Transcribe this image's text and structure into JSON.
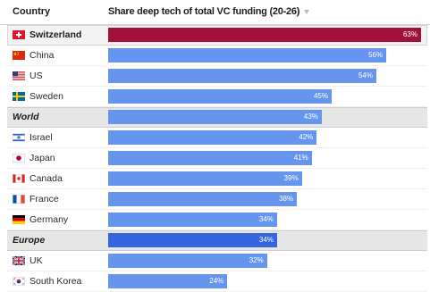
{
  "header": {
    "country_label": "Country",
    "sort_icon": "sort-descending-icon"
  },
  "colors": {
    "highlight_row_bg": "#f3f3f3",
    "aggregate_row_bg": "#e6e6e6"
  },
  "chart_data": {
    "type": "bar",
    "orientation": "horizontal",
    "title": "Share deep tech of total VC funding (20-26)",
    "categories": [
      "Switzerland",
      "China",
      "US",
      "Sweden",
      "World",
      "Israel",
      "Japan",
      "Canada",
      "France",
      "Germany",
      "Europe",
      "UK",
      "South Korea"
    ],
    "values": [
      63,
      56,
      54,
      45,
      43,
      42,
      41,
      39,
      38,
      34,
      34,
      32,
      24
    ],
    "value_labels": [
      "63%",
      "56%",
      "54%",
      "45%",
      "43%",
      "42%",
      "41%",
      "39%",
      "38%",
      "34%",
      "34%",
      "32%",
      "24%"
    ],
    "xlim": [
      0,
      63
    ],
    "highlighted": [
      true,
      false,
      false,
      false,
      false,
      false,
      false,
      false,
      false,
      false,
      false,
      false,
      false
    ],
    "is_aggregate": [
      false,
      false,
      false,
      false,
      true,
      false,
      false,
      false,
      false,
      false,
      true,
      false,
      false
    ],
    "flags": [
      "switzerland-flag-icon",
      "china-flag-icon",
      "us-flag-icon",
      "sweden-flag-icon",
      null,
      "israel-flag-icon",
      "japan-flag-icon",
      "canada-flag-icon",
      "france-flag-icon",
      "germany-flag-icon",
      null,
      "uk-flag-icon",
      "south-korea-flag-icon"
    ],
    "bar_colors": [
      "#a3113b",
      "#6695ee",
      "#6695ee",
      "#6695ee",
      "#6695ee",
      "#6695ee",
      "#6695ee",
      "#6695ee",
      "#6695ee",
      "#6695ee",
      "#3566df",
      "#6695ee",
      "#6695ee"
    ]
  }
}
